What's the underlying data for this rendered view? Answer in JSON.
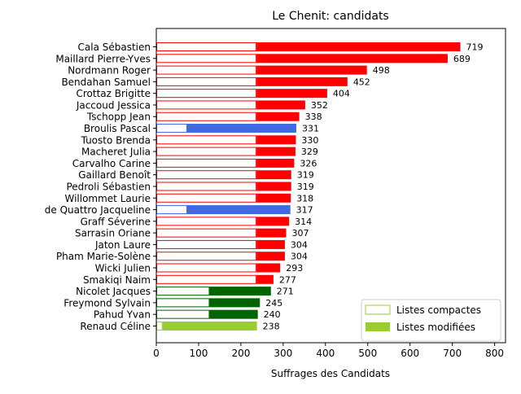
{
  "chart_data": {
    "type": "bar",
    "orientation": "horizontal",
    "title": "Le Chenit: candidats",
    "xlabel": "Suffrages des Candidats",
    "ylabel": "",
    "xlim": [
      0,
      825
    ],
    "xticks": [
      0,
      100,
      200,
      300,
      400,
      500,
      600,
      700,
      800
    ],
    "grid": false,
    "legend": {
      "placement": "lower-right",
      "entries": [
        {
          "label": "Listes compactes",
          "style": "outline",
          "color": "#9acd32"
        },
        {
          "label": "Listes modifiées",
          "style": "filled",
          "color": "#9acd32"
        }
      ]
    },
    "candidates": [
      {
        "name": "Cala Sébastien",
        "total": 719,
        "compact": 237,
        "color": "#ff0000"
      },
      {
        "name": "Maillard Pierre-Yves",
        "total": 689,
        "compact": 237,
        "color": "#ff0000"
      },
      {
        "name": "Nordmann Roger",
        "total": 498,
        "compact": 237,
        "color": "#ff0000"
      },
      {
        "name": "Bendahan Samuel",
        "total": 452,
        "compact": 237,
        "color": "#ff0000"
      },
      {
        "name": "Crottaz Brigitte",
        "total": 404,
        "compact": 237,
        "color": "#ff0000"
      },
      {
        "name": "Jaccoud Jessica",
        "total": 352,
        "compact": 237,
        "color": "#ff0000"
      },
      {
        "name": "Tschopp Jean",
        "total": 338,
        "compact": 237,
        "color": "#ff0000"
      },
      {
        "name": "Broulis Pascal",
        "total": 331,
        "compact": 73,
        "color": "#4169e1"
      },
      {
        "name": "Tuosto Brenda",
        "total": 330,
        "compact": 237,
        "color": "#ff0000"
      },
      {
        "name": "Macheret Julia",
        "total": 329,
        "compact": 237,
        "color": "#ff0000"
      },
      {
        "name": "Carvalho Carine",
        "total": 326,
        "compact": 237,
        "color": "#ff0000"
      },
      {
        "name": "Gaillard Benoît",
        "total": 319,
        "compact": 237,
        "color": "#ff0000"
      },
      {
        "name": "Pedroli Sébastien",
        "total": 319,
        "compact": 237,
        "color": "#ff0000"
      },
      {
        "name": "Willommet Laurie",
        "total": 318,
        "compact": 237,
        "color": "#ff0000"
      },
      {
        "name": "de Quattro Jacqueline",
        "total": 317,
        "compact": 73,
        "color": "#4169e1"
      },
      {
        "name": "Graff Séverine",
        "total": 314,
        "compact": 237,
        "color": "#ff0000"
      },
      {
        "name": "Sarrasin Oriane",
        "total": 307,
        "compact": 237,
        "color": "#ff0000"
      },
      {
        "name": "Jaton Laure",
        "total": 304,
        "compact": 237,
        "color": "#ff0000"
      },
      {
        "name": "Pham Marie-Solène",
        "total": 304,
        "compact": 237,
        "color": "#ff0000"
      },
      {
        "name": "Wicki Julien",
        "total": 293,
        "compact": 237,
        "color": "#ff0000"
      },
      {
        "name": "Smakiqi Naim",
        "total": 277,
        "compact": 237,
        "color": "#ff0000"
      },
      {
        "name": "Nicolet Jacques",
        "total": 271,
        "compact": 126,
        "color": "#006400"
      },
      {
        "name": "Freymond Sylvain",
        "total": 245,
        "compact": 126,
        "color": "#006400"
      },
      {
        "name": "Pahud Yvan",
        "total": 240,
        "compact": 126,
        "color": "#006400"
      },
      {
        "name": "Renaud Céline",
        "total": 238,
        "compact": 15,
        "color": "#9acd32"
      }
    ]
  }
}
